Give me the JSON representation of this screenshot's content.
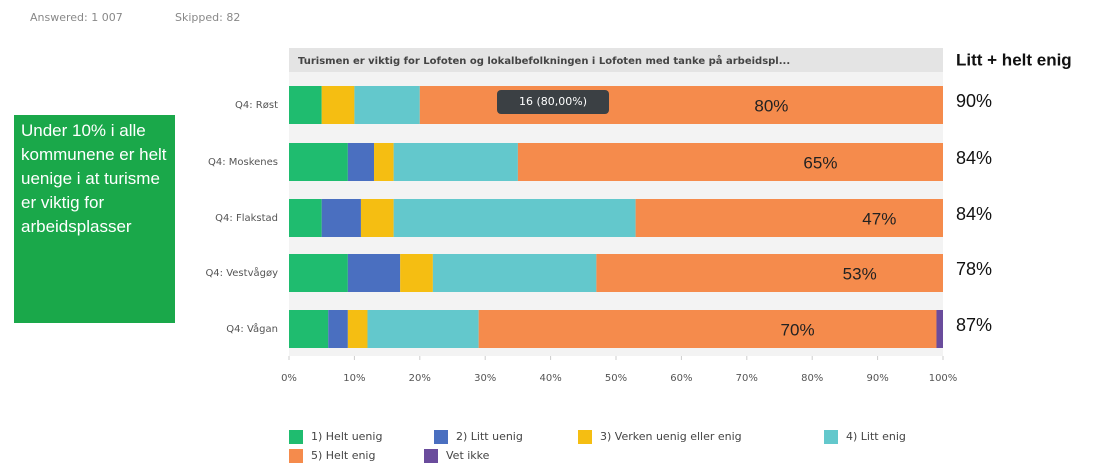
{
  "header": {
    "answered": "Answered: 1 007",
    "skipped": "Skipped: 82"
  },
  "note": "Under 10% i alle kommunene er helt uenige i at turisme er viktig for arbeidsplasser",
  "totals": {
    "title": "Litt + helt enig",
    "labels": [
      "90%",
      "84%",
      "84%",
      "78%",
      "87%"
    ]
  },
  "tooltip": "16 (80,00%)",
  "chart_data": {
    "type": "stacked-bar-horizontal",
    "title": "Turismen  er viktig for Lofoten og lokalbefolkningen i Lofoten med tanke på arbeidspl...",
    "categories": [
      "Q4: Røst",
      "Q4: Moskenes",
      "Q4: Flakstad",
      "Q4: Vestvågøy",
      "Q4: Vågan"
    ],
    "series": [
      {
        "name": "1) Helt uenig",
        "color": "#1fbc6f",
        "values": [
          5,
          9,
          5,
          9,
          6
        ]
      },
      {
        "name": "2) Litt uenig",
        "color": "#4a6fc0",
        "values": [
          0,
          4,
          6,
          8,
          3
        ]
      },
      {
        "name": "3) Verken uenig eller enig",
        "color": "#f5be12",
        "values": [
          5,
          3,
          5,
          5,
          3
        ]
      },
      {
        "name": "4) Litt enig",
        "color": "#63c8cc",
        "values": [
          10,
          19,
          37,
          25,
          17
        ]
      },
      {
        "name": "5) Helt enig",
        "color": "#f58b4c",
        "values": [
          80,
          65,
          47,
          53,
          70
        ],
        "value_labels": [
          "80%",
          "65%",
          "47%",
          "53%",
          "70%"
        ]
      },
      {
        "name": "Vet ikke",
        "color": "#6a4c9c",
        "values": [
          0,
          0,
          0,
          0,
          1
        ]
      }
    ],
    "xlim": [
      0,
      100
    ],
    "xticks": [
      {
        "value": 0,
        "label": "0%"
      },
      {
        "value": 10,
        "label": "10%"
      },
      {
        "value": 20,
        "label": "20%"
      },
      {
        "value": 30,
        "label": "30%"
      },
      {
        "value": 40,
        "label": "40%"
      },
      {
        "value": 50,
        "label": "50%"
      },
      {
        "value": 60,
        "label": "60%"
      },
      {
        "value": 70,
        "label": "70%"
      },
      {
        "value": 80,
        "label": "80%"
      },
      {
        "value": 90,
        "label": "90%"
      },
      {
        "value": 100,
        "label": "100%"
      }
    ],
    "legend": "bottom"
  }
}
